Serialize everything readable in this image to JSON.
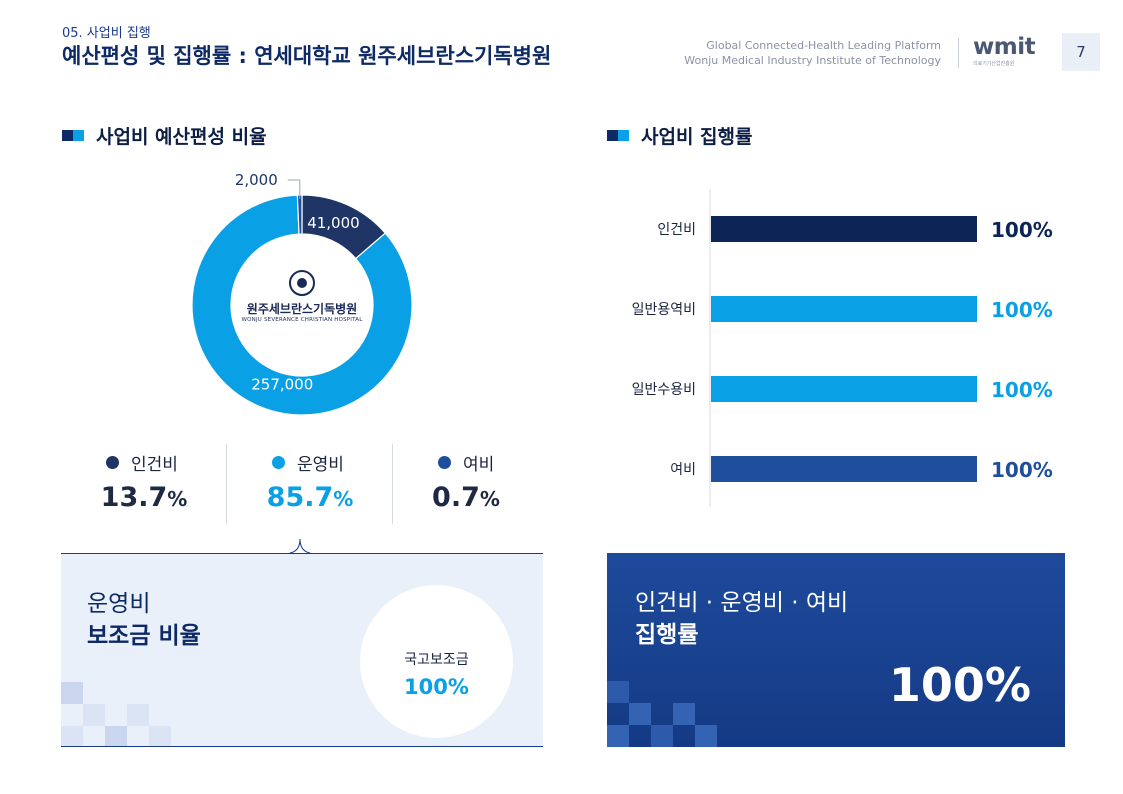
{
  "header": {
    "section_label": "05. 사업비 집행",
    "title": "예산편성 및 집행률 : 연세대학교 원주세브란스기독병원",
    "platform_line1": "Global Connected-Health Leading Platform",
    "platform_line2": "Wonju Medical Industry Institute of Technology",
    "logo_text": "wmit",
    "logo_sub": "의료기기산업진흥원",
    "page_number": "7"
  },
  "left_panel": {
    "heading": "사업비 예산편성 비율",
    "hospital_name_kr": "원주세브란스기독병원",
    "hospital_name_en": "WONJU SEVERANCE CHRISTIAN HOSPITAL",
    "legend": [
      {
        "label": "인건비",
        "pct": "13.7",
        "color": "#1e3566"
      },
      {
        "label": "운영비",
        "pct": "85.7",
        "color": "#0aa0e6"
      },
      {
        "label": "여비",
        "pct": "0.7",
        "color": "#1f4e9c"
      }
    ],
    "pct_sign": "%"
  },
  "subsidy_box": {
    "title_line1": "운영비",
    "title_line2": "보조금 비율",
    "circle_label": "국고보조금",
    "circle_value": "100%"
  },
  "right_panel": {
    "heading": "사업비 집행률"
  },
  "exec_box": {
    "title_line1": "인건비 · 운영비 · 여비",
    "title_line2": "집행률",
    "value": "100%"
  },
  "chart_data": [
    {
      "type": "pie",
      "title": "",
      "categories": [
        "인건비",
        "운영비",
        "여비"
      ],
      "values": [
        41000,
        257000,
        2000
      ],
      "value_labels": [
        "41,000",
        "257,000",
        "2,000"
      ],
      "colors": [
        "#1e3566",
        "#0aa0e6",
        "#1f4e9c"
      ],
      "donut": true
    },
    {
      "type": "bar",
      "orientation": "horizontal",
      "title": "",
      "categories": [
        "인건비",
        "일반용역비",
        "일반수용비",
        "여비"
      ],
      "values": [
        100,
        100,
        100,
        100
      ],
      "value_labels": [
        "100%",
        "100%",
        "100%",
        "100%"
      ],
      "colors": [
        "#0d2456",
        "#0aa0e6",
        "#0aa0e6",
        "#1f4e9c"
      ],
      "value_label_colors": [
        "#0d2456",
        "#0aa0e6",
        "#0aa0e6",
        "#1f4e9c"
      ],
      "xlim": [
        0,
        100
      ],
      "xlabel": "",
      "ylabel": ""
    }
  ]
}
